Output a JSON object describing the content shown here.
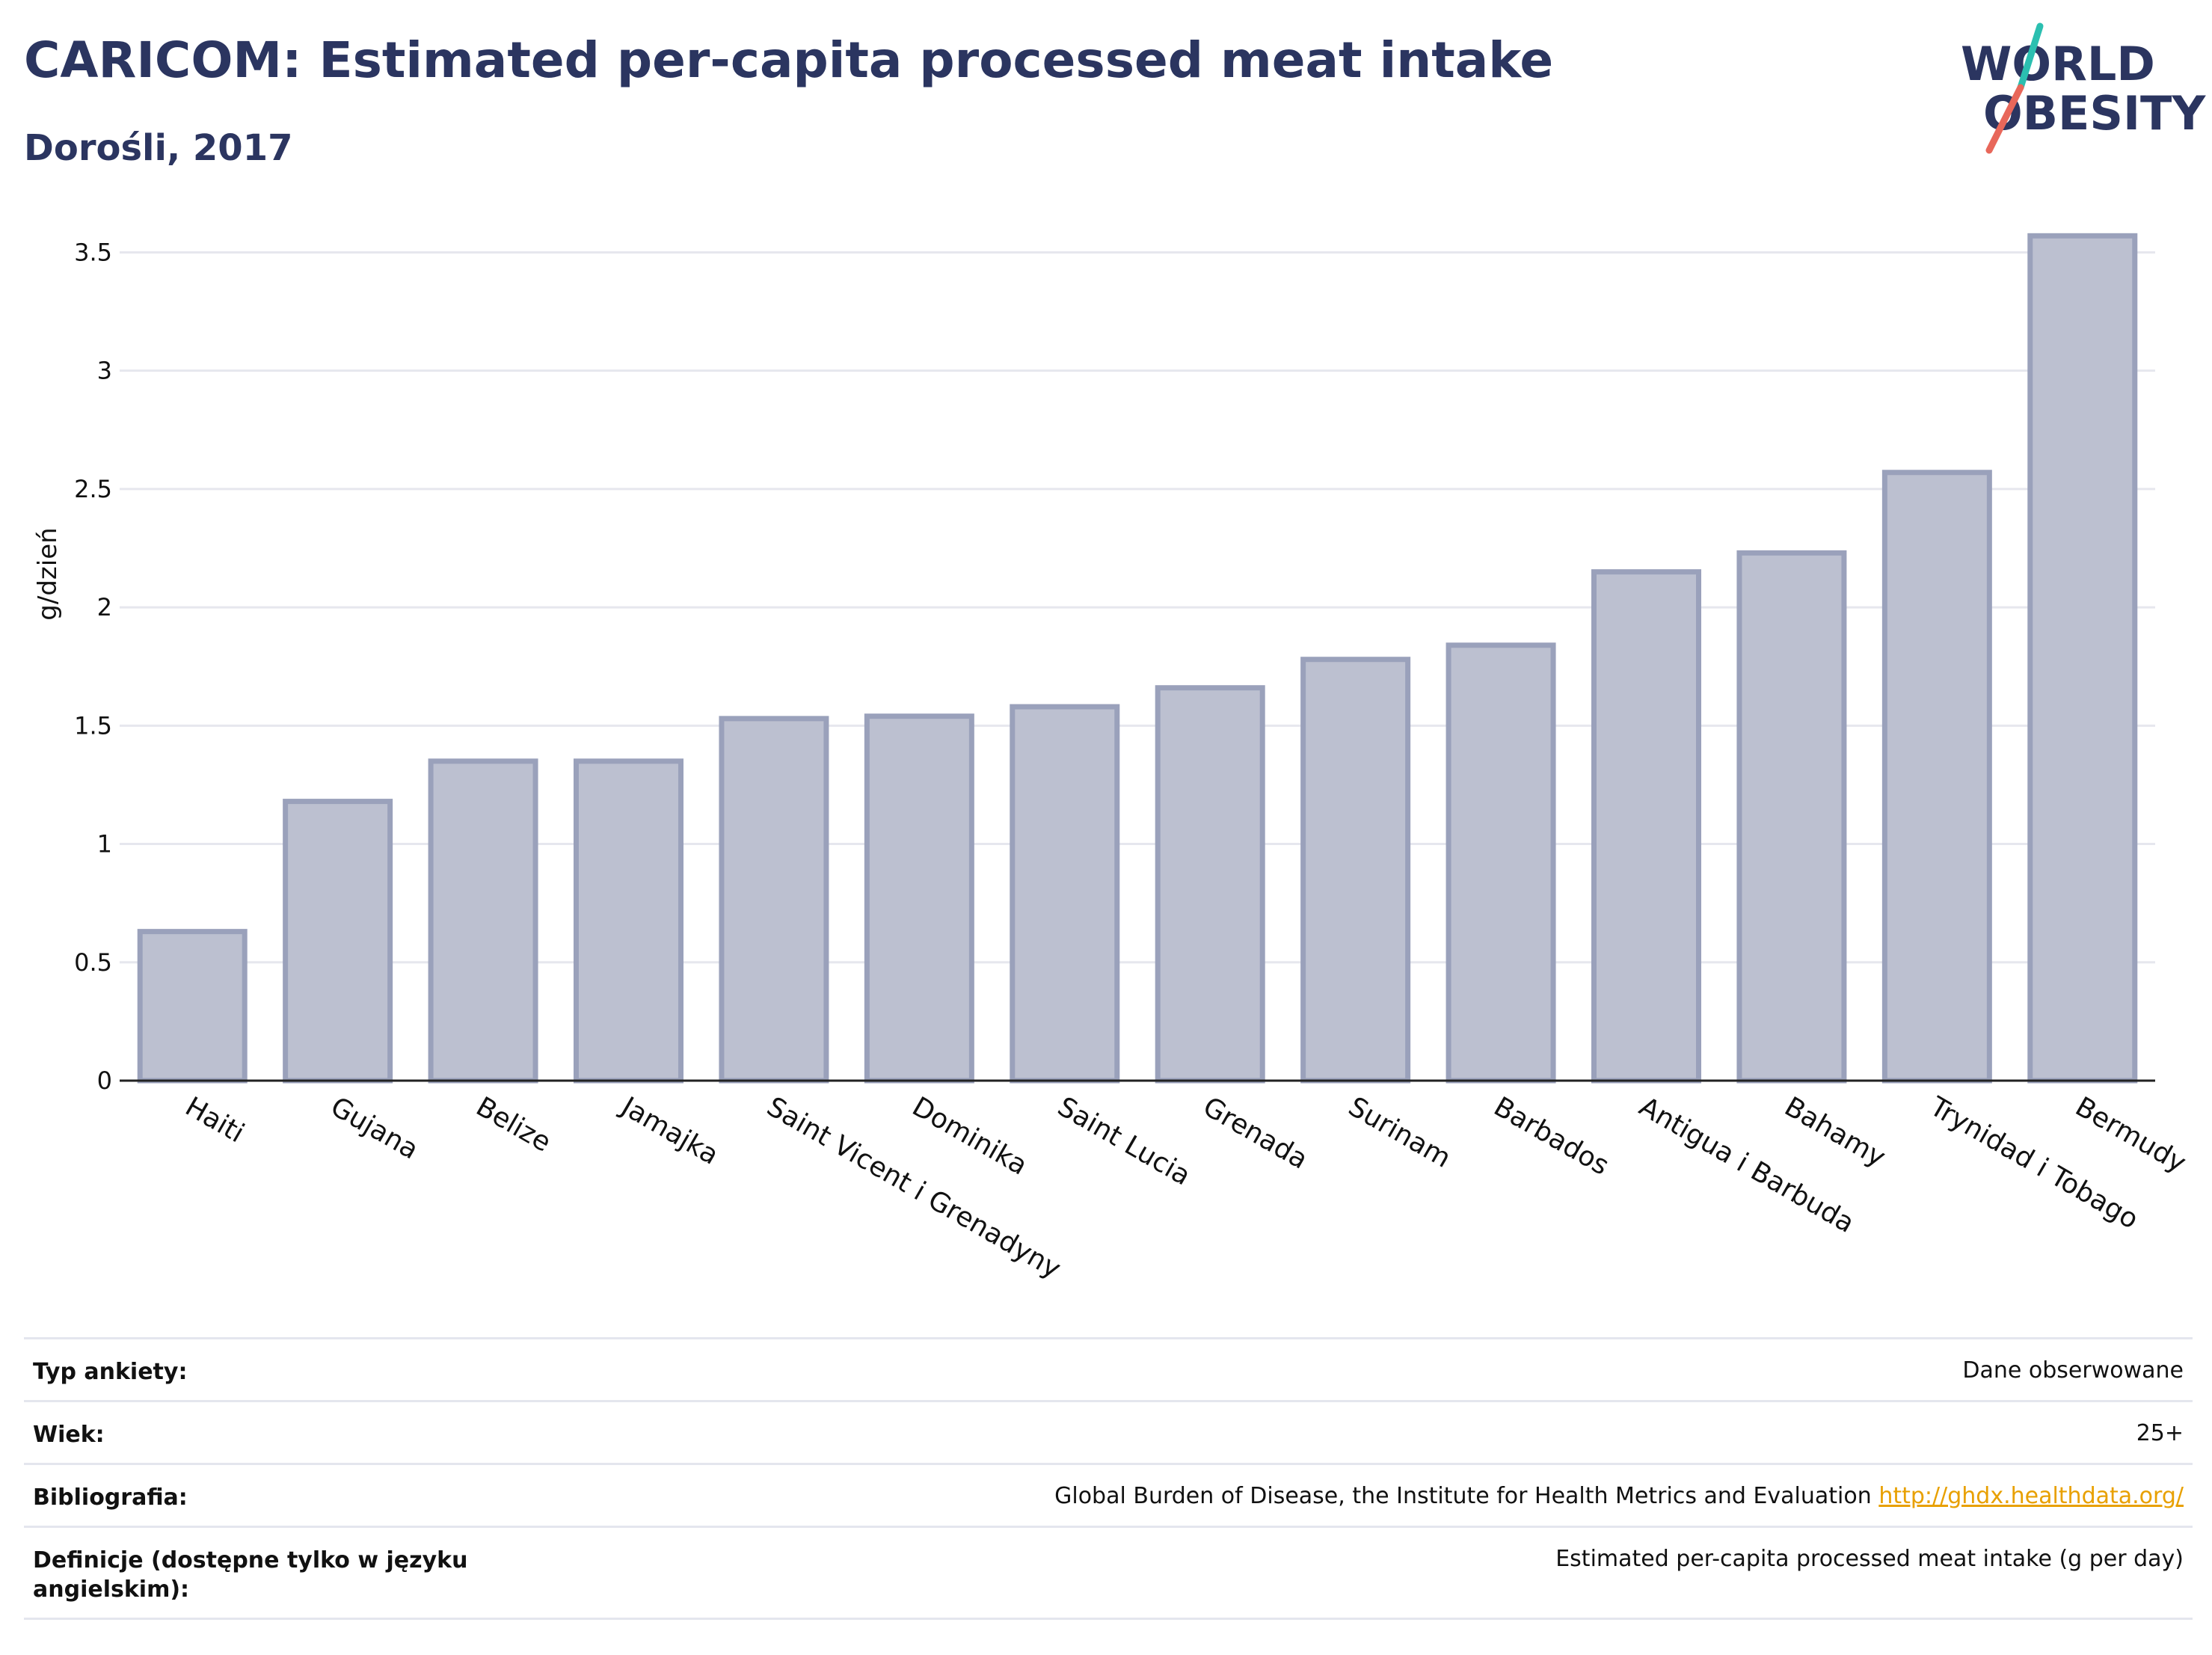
{
  "header": {
    "title": "CARICOM: Estimated per-capita processed meat intake",
    "subtitle": "Dorośli, 2017"
  },
  "logo": {
    "line1": "WORLD",
    "line2": "OBESITY",
    "colors": {
      "text": "#2b3560",
      "slash_top": "#2bbfb0",
      "slash_bottom": "#e8675a"
    }
  },
  "chart_data": {
    "type": "bar",
    "categories": [
      "Haiti",
      "Gujana",
      "Belize",
      "Jamajka",
      "Saint Vicent i Grenadyny",
      "Dominika",
      "Saint Lucia",
      "Grenada",
      "Surinam",
      "Barbados",
      "Antigua i Barbuda",
      "Bahamy",
      "Trynidad i Tobago",
      "Bermudy"
    ],
    "values": [
      0.63,
      1.18,
      1.35,
      1.35,
      1.53,
      1.54,
      1.58,
      1.66,
      1.78,
      1.84,
      2.15,
      2.23,
      2.57,
      3.57
    ],
    "ylabel": "g/dzień",
    "ylim": [
      0,
      3.65
    ],
    "yticks": [
      0,
      0.5,
      1,
      1.5,
      2,
      2.5,
      3,
      3.5
    ],
    "ytick_labels": [
      "0",
      "0.5",
      "1",
      "1.5",
      "2",
      "2.5",
      "3",
      "3.5"
    ],
    "grid": true,
    "colors": {
      "bar_fill": "#bcc0d0",
      "bar_stroke": "#9aa1bb",
      "grid": "#e6e7ee",
      "axis": "#222222"
    }
  },
  "info": {
    "rows": [
      {
        "label": "Typ ankiety:",
        "value": "Dane obserwowane"
      },
      {
        "label": "Wiek:",
        "value": "25+"
      },
      {
        "label": "Bibliografia:",
        "value": "Global Burden of Disease, the Institute for Health Metrics and Evaluation",
        "link": "http://ghdx.healthdata.org/"
      },
      {
        "label": "Definicje (dostępne tylko w języku angielskim):",
        "value": "Estimated per-capita processed meat intake (g per day)"
      }
    ]
  }
}
